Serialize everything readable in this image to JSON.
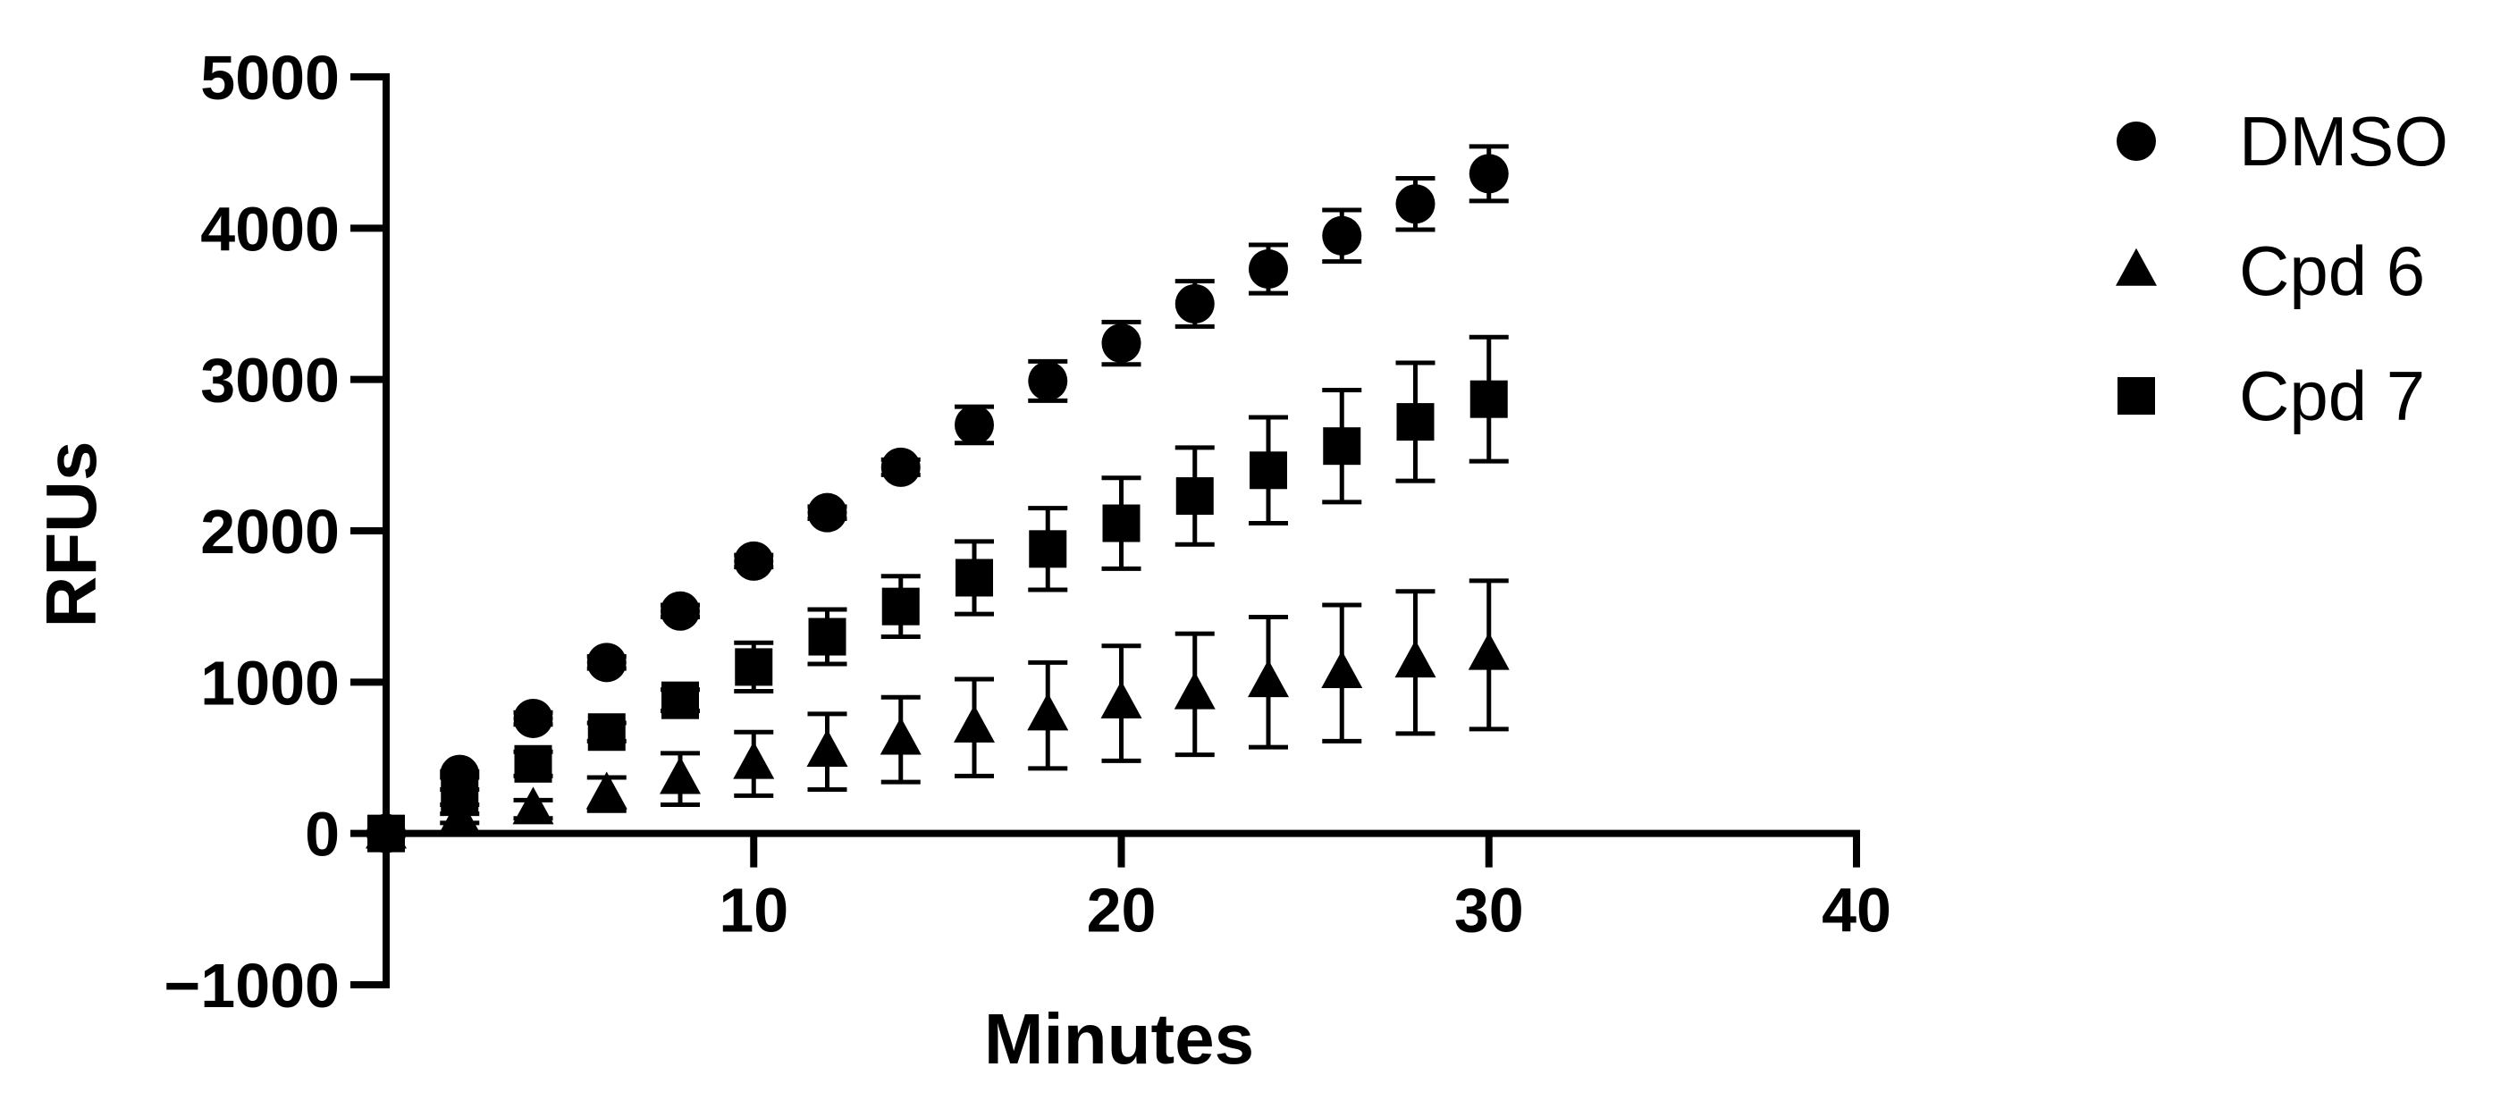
{
  "chart_data": {
    "type": "scatter",
    "title": "",
    "xlabel": "Minutes",
    "ylabel": "RFUs",
    "xlim": [
      0,
      40
    ],
    "ylim": [
      -1000,
      5000
    ],
    "x_ticks": [
      10,
      20,
      30,
      40
    ],
    "x_tick_labels": [
      "10",
      "20",
      "30",
      "40"
    ],
    "y_ticks": [
      -1000,
      0,
      1000,
      2000,
      3000,
      4000,
      5000
    ],
    "y_tick_labels": [
      "−1000",
      "0",
      "1000",
      "2000",
      "3000",
      "4000",
      "5000"
    ],
    "grid": false,
    "legend_position": "right",
    "error_bars": true,
    "series": [
      {
        "name": "DMSO",
        "marker": "circle",
        "color": "#000000",
        "x": [
          0,
          2,
          4,
          6,
          8,
          10,
          12,
          14,
          16,
          18,
          20,
          22,
          24,
          26,
          28,
          30
        ],
        "y": [
          0,
          390,
          760,
          1130,
          1470,
          1800,
          2120,
          2420,
          2700,
          2990,
          3240,
          3500,
          3730,
          3950,
          4160,
          4360
        ],
        "err": [
          0,
          20,
          40,
          40,
          40,
          40,
          40,
          50,
          120,
          130,
          140,
          150,
          160,
          170,
          170,
          180
        ]
      },
      {
        "name": "Cpd 6",
        "marker": "triangle",
        "color": "#000000",
        "x": [
          0,
          2,
          4,
          6,
          8,
          10,
          12,
          14,
          16,
          18,
          20,
          22,
          24,
          26,
          28,
          30
        ],
        "y": [
          0,
          100,
          160,
          260,
          360,
          460,
          540,
          620,
          700,
          780,
          860,
          920,
          1000,
          1060,
          1130,
          1180
        ],
        "err": [
          0,
          30,
          60,
          110,
          170,
          210,
          250,
          280,
          320,
          350,
          380,
          400,
          430,
          450,
          470,
          490
        ]
      },
      {
        "name": "Cpd 7",
        "marker": "square",
        "color": "#000000",
        "x": [
          0,
          2,
          4,
          6,
          8,
          10,
          12,
          14,
          16,
          18,
          20,
          22,
          24,
          26,
          28,
          30
        ],
        "y": [
          0,
          240,
          460,
          670,
          880,
          1100,
          1300,
          1500,
          1690,
          1880,
          2050,
          2230,
          2400,
          2560,
          2720,
          2870
        ],
        "err": [
          0,
          50,
          80,
          60,
          70,
          160,
          180,
          200,
          240,
          270,
          300,
          320,
          350,
          370,
          390,
          410
        ]
      }
    ]
  }
}
